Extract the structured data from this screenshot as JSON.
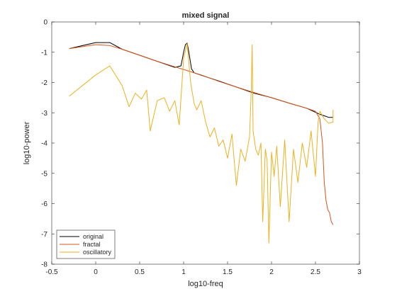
{
  "chart_data": {
    "type": "line",
    "title": "mixed signal",
    "xlabel": "log10-freq",
    "ylabel": "log10-power",
    "xlim": [
      -0.5,
      3
    ],
    "ylim": [
      -8,
      0
    ],
    "xticks": [
      -0.5,
      0,
      0.5,
      1,
      1.5,
      2,
      2.5,
      3
    ],
    "xtick_labels": [
      "-0.5",
      "0",
      "0.5",
      "1",
      "1.5",
      "2",
      "2.5",
      "3"
    ],
    "yticks": [
      -8,
      -7,
      -6,
      -5,
      -4,
      -3,
      -2,
      -1,
      0
    ],
    "ytick_labels": [
      "-8",
      "-7",
      "-6",
      "-5",
      "-4",
      "-3",
      "-2",
      "-1",
      "0"
    ],
    "grid": false,
    "legend_position": "bottom-left",
    "series": [
      {
        "name": "original",
        "color": "#000000",
        "x": [
          -0.3,
          0.0,
          0.16,
          0.3,
          0.5,
          0.7,
          0.9,
          0.97,
          1.0,
          1.02,
          1.04,
          1.06,
          1.09,
          1.12,
          1.2,
          1.4,
          1.6,
          1.8,
          2.0,
          2.2,
          2.4,
          2.55,
          2.6,
          2.65,
          2.7
        ],
        "y": [
          -0.88,
          -0.68,
          -0.68,
          -0.9,
          -1.1,
          -1.3,
          -1.5,
          -1.45,
          -1.0,
          -0.75,
          -0.7,
          -1.0,
          -1.55,
          -1.68,
          -1.76,
          -1.95,
          -2.15,
          -2.35,
          -2.5,
          -2.68,
          -2.85,
          -3.05,
          -3.1,
          -3.15,
          -3.15
        ]
      },
      {
        "name": "fractal",
        "color": "#d95319",
        "x": [
          -0.3,
          0.0,
          0.16,
          0.3,
          0.5,
          0.7,
          0.9,
          1.0,
          1.1,
          1.2,
          1.4,
          1.6,
          1.8,
          2.0,
          2.2,
          2.4,
          2.5,
          2.55,
          2.58,
          2.6,
          2.62,
          2.64,
          2.66,
          2.68,
          2.7
        ],
        "y": [
          -0.88,
          -0.75,
          -0.78,
          -0.9,
          -1.1,
          -1.3,
          -1.48,
          -1.57,
          -1.66,
          -1.75,
          -1.96,
          -2.15,
          -2.33,
          -2.5,
          -2.68,
          -2.85,
          -2.95,
          -3.2,
          -4.0,
          -5.3,
          -5.9,
          -6.2,
          -6.3,
          -6.6,
          -6.7
        ]
      },
      {
        "name": "oscillatory",
        "color": "#edb120",
        "x": [
          -0.3,
          0.0,
          0.16,
          0.3,
          0.38,
          0.45,
          0.52,
          0.58,
          0.62,
          0.7,
          0.78,
          0.84,
          0.9,
          0.95,
          1.0,
          1.04,
          1.08,
          1.12,
          1.15,
          1.2,
          1.25,
          1.3,
          1.35,
          1.4,
          1.45,
          1.5,
          1.55,
          1.6,
          1.65,
          1.7,
          1.75,
          1.77,
          1.78,
          1.79,
          1.82,
          1.85,
          1.88,
          1.9,
          1.93,
          1.95,
          1.97,
          2.0,
          2.03,
          2.06,
          2.1,
          2.15,
          2.2,
          2.25,
          2.3,
          2.35,
          2.4,
          2.45,
          2.5,
          2.53,
          2.55,
          2.6,
          2.65,
          2.7,
          2.7
        ],
        "y": [
          -2.45,
          -1.75,
          -1.45,
          -2.1,
          -2.8,
          -2.35,
          -2.55,
          -2.25,
          -3.6,
          -2.6,
          -2.5,
          -2.95,
          -2.6,
          -3.4,
          -1.2,
          -0.72,
          -2.0,
          -2.7,
          -2.9,
          -2.6,
          -3.3,
          -3.8,
          -3.5,
          -4.1,
          -3.9,
          -4.5,
          -3.7,
          -5.4,
          -4.2,
          -4.6,
          -3.8,
          -2.2,
          -0.75,
          -3.6,
          -4.2,
          -4.4,
          -4.0,
          -6.6,
          -4.2,
          -4.6,
          -7.3,
          -4.3,
          -5.1,
          -4.1,
          -6.1,
          -3.9,
          -6.6,
          -4.2,
          -5.3,
          -4.0,
          -4.8,
          -3.6,
          -5.1,
          -3.3,
          -2.95,
          -3.2,
          -3.35,
          -3.3,
          -2.9
        ]
      }
    ]
  }
}
